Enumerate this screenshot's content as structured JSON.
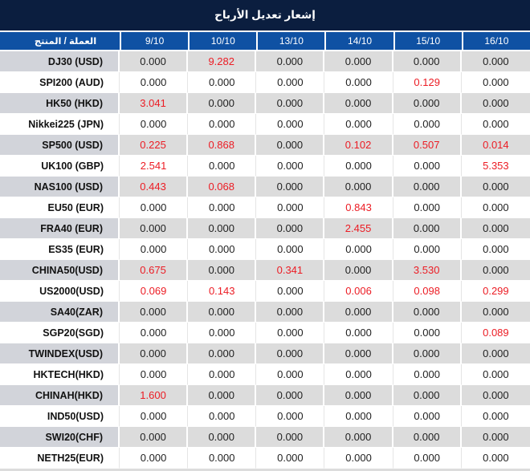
{
  "title": "إشعار تعديل الأرباح",
  "table": {
    "product_header": "العملة / المنتج",
    "date_headers": [
      "9/10",
      "10/10",
      "13/10",
      "14/10",
      "15/10",
      "16/10"
    ],
    "rows": [
      {
        "label": "DJ30 (USD)",
        "values": [
          "0.000",
          "9.282",
          "0.000",
          "0.000",
          "0.000",
          "0.000"
        ]
      },
      {
        "label": "SPI200 (AUD)",
        "values": [
          "0.000",
          "0.000",
          "0.000",
          "0.000",
          "0.129",
          "0.000"
        ]
      },
      {
        "label": "HK50 (HKD)",
        "values": [
          "3.041",
          "0.000",
          "0.000",
          "0.000",
          "0.000",
          "0.000"
        ]
      },
      {
        "label": "Nikkei225 (JPN)",
        "values": [
          "0.000",
          "0.000",
          "0.000",
          "0.000",
          "0.000",
          "0.000"
        ]
      },
      {
        "label": "SP500 (USD)",
        "values": [
          "0.225",
          "0.868",
          "0.000",
          "0.102",
          "0.507",
          "0.014"
        ]
      },
      {
        "label": "UK100 (GBP)",
        "values": [
          "2.541",
          "0.000",
          "0.000",
          "0.000",
          "0.000",
          "5.353"
        ]
      },
      {
        "label": "NAS100 (USD)",
        "values": [
          "0.443",
          "0.068",
          "0.000",
          "0.000",
          "0.000",
          "0.000"
        ]
      },
      {
        "label": "EU50 (EUR)",
        "values": [
          "0.000",
          "0.000",
          "0.000",
          "0.843",
          "0.000",
          "0.000"
        ]
      },
      {
        "label": "FRA40 (EUR)",
        "values": [
          "0.000",
          "0.000",
          "0.000",
          "2.455",
          "0.000",
          "0.000"
        ]
      },
      {
        "label": "ES35 (EUR)",
        "values": [
          "0.000",
          "0.000",
          "0.000",
          "0.000",
          "0.000",
          "0.000"
        ]
      },
      {
        "label": "CHINA50(USD)",
        "values": [
          "0.675",
          "0.000",
          "0.341",
          "0.000",
          "3.530",
          "0.000"
        ]
      },
      {
        "label": "US2000(USD)",
        "values": [
          "0.069",
          "0.143",
          "0.000",
          "0.006",
          "0.098",
          "0.299"
        ]
      },
      {
        "label": "SA40(ZAR)",
        "values": [
          "0.000",
          "0.000",
          "0.000",
          "0.000",
          "0.000",
          "0.000"
        ]
      },
      {
        "label": "SGP20(SGD)",
        "values": [
          "0.000",
          "0.000",
          "0.000",
          "0.000",
          "0.000",
          "0.089"
        ]
      },
      {
        "label": "TWINDEX(USD)",
        "values": [
          "0.000",
          "0.000",
          "0.000",
          "0.000",
          "0.000",
          "0.000"
        ]
      },
      {
        "label": "HKTECH(HKD)",
        "values": [
          "0.000",
          "0.000",
          "0.000",
          "0.000",
          "0.000",
          "0.000"
        ]
      },
      {
        "label": "CHINAH(HKD)",
        "values": [
          "1.600",
          "0.000",
          "0.000",
          "0.000",
          "0.000",
          "0.000"
        ]
      },
      {
        "label": "IND50(USD)",
        "values": [
          "0.000",
          "0.000",
          "0.000",
          "0.000",
          "0.000",
          "0.000"
        ]
      },
      {
        "label": "SWI20(CHF)",
        "values": [
          "0.000",
          "0.000",
          "0.000",
          "0.000",
          "0.000",
          "0.000"
        ]
      },
      {
        "label": "NETH25(EUR)",
        "values": [
          "0.000",
          "0.000",
          "0.000",
          "0.000",
          "0.000",
          "0.000"
        ]
      }
    ]
  },
  "colors": {
    "title_bar": "#0b1e3f",
    "header_bar": "#0f51a3",
    "stripe_gray": "#dcdcdc",
    "stripe_label_gray": "#d2d4da",
    "zero_value_text": "#1f1f1f",
    "nonzero_value_text": "#ec1c24"
  }
}
